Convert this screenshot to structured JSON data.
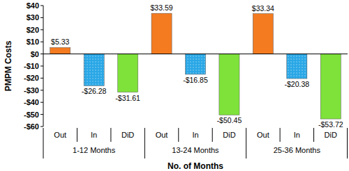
{
  "chart_data": {
    "type": "bar",
    "x_label": "No. of Months",
    "y_label": "PMPM Costs",
    "categories": [
      "1-12 Months",
      "13-24 Months",
      "25-36 Months"
    ],
    "series": [
      {
        "name": "Out",
        "color": "#f47b20",
        "values": [
          5.33,
          33.59,
          33.34
        ],
        "value_labels": [
          "$5.33",
          "$33.59",
          "$33.34"
        ]
      },
      {
        "name": "In",
        "color": "#2aa7e6",
        "values": [
          -26.28,
          -16.85,
          -20.38
        ],
        "value_labels": [
          "-$26.28",
          "-$16.85",
          "-$20.38"
        ]
      },
      {
        "name": "DiD",
        "color": "#7ee23a",
        "values": [
          -31.61,
          -50.45,
          -53.72
        ],
        "value_labels": [
          "-$31.61",
          "-$50.45",
          "-$53.72"
        ]
      }
    ],
    "ylim": [
      -60,
      40
    ],
    "yticks": [
      {
        "value": 40,
        "label": "$40"
      },
      {
        "value": 30,
        "label": "$30"
      },
      {
        "value": 20,
        "label": "$20"
      },
      {
        "value": 10,
        "label": "$10"
      },
      {
        "value": 0,
        "label": "$0"
      },
      {
        "value": -10,
        "label": "-$10"
      },
      {
        "value": -20,
        "label": "-$20"
      },
      {
        "value": -30,
        "label": "-$30"
      },
      {
        "value": -40,
        "label": "-$40"
      },
      {
        "value": -50,
        "label": "-$50"
      },
      {
        "value": -60,
        "label": "-$60"
      }
    ],
    "grid": false,
    "data_labels": true
  }
}
